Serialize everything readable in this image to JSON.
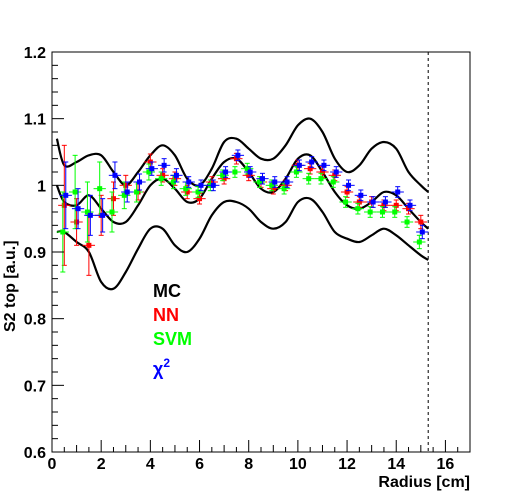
{
  "chart_data": {
    "type": "scatter",
    "title": "",
    "xlabel": "Radius [cm]",
    "ylabel": "S2 top [a.u.]",
    "xlim": [
      0,
      17
    ],
    "ylim": [
      0.6,
      1.2
    ],
    "grid": false,
    "x_ticks": [
      "0",
      "2",
      "4",
      "6",
      "8",
      "10",
      "12",
      "14",
      "16"
    ],
    "y_ticks": [
      "0.6",
      "0.7",
      "0.8",
      "0.9",
      "1",
      "1.1",
      "1.2"
    ],
    "cut_line_x": 15.3,
    "legend_position": "center-left",
    "legend": [
      {
        "key": "mc",
        "label": "MC",
        "color": "#000000"
      },
      {
        "key": "nn",
        "label": "NN",
        "color": "#ff0000"
      },
      {
        "key": "svm",
        "label": "SVM",
        "color": "#00ff00"
      },
      {
        "key": "chi2",
        "label": "χ",
        "sup": "2",
        "color": "#0000ff"
      }
    ],
    "mc_band": {
      "color": "#000000",
      "x": [
        0.2,
        0.5,
        1,
        1.5,
        2,
        2.5,
        3,
        3.5,
        4,
        4.5,
        5,
        5.5,
        6,
        6.5,
        7,
        7.5,
        8,
        8.5,
        9,
        9.5,
        10,
        10.5,
        11,
        11.5,
        12,
        12.5,
        13,
        13.5,
        14,
        14.5,
        15,
        15.3
      ],
      "upper": [
        1.07,
        1.03,
        1.035,
        1.045,
        1.045,
        1.02,
        1.0,
        1.02,
        1.045,
        1.06,
        1.045,
        1.01,
        1.0,
        1.025,
        1.065,
        1.07,
        1.055,
        1.04,
        1.04,
        1.06,
        1.09,
        1.1,
        1.08,
        1.04,
        1.02,
        1.03,
        1.055,
        1.065,
        1.055,
        1.02,
        1.0,
        0.99
      ],
      "central": [
        1.0,
        0.975,
        0.97,
        0.985,
        0.965,
        0.945,
        0.945,
        0.97,
        1.0,
        1.01,
        0.995,
        0.975,
        0.98,
        1.01,
        1.035,
        1.04,
        1.02,
        0.995,
        0.99,
        1.01,
        1.04,
        1.045,
        1.02,
        0.99,
        0.97,
        0.965,
        0.975,
        0.99,
        0.985,
        0.965,
        0.945,
        0.935
      ],
      "lower": [
        0.93,
        0.93,
        0.915,
        0.9,
        0.855,
        0.845,
        0.87,
        0.905,
        0.935,
        0.935,
        0.91,
        0.9,
        0.92,
        0.955,
        0.975,
        0.975,
        0.965,
        0.945,
        0.935,
        0.945,
        0.975,
        0.98,
        0.96,
        0.93,
        0.92,
        0.915,
        0.925,
        0.935,
        0.925,
        0.91,
        0.895,
        0.888
      ]
    },
    "series": [
      {
        "name": "NN",
        "color": "#ff0000",
        "x": [
          0.5,
          1.0,
          1.5,
          2.0,
          2.5,
          3.0,
          3.5,
          4.0,
          4.5,
          5.0,
          5.5,
          6.0,
          6.5,
          7.0,
          7.5,
          8.0,
          8.5,
          9.0,
          9.5,
          10.0,
          10.5,
          11.0,
          11.5,
          12.0,
          12.5,
          13.0,
          13.5,
          14.0,
          14.5,
          15.0
        ],
        "y": [
          0.97,
          0.945,
          0.91,
          0.955,
          0.98,
          1.0,
          0.99,
          1.035,
          1.015,
          1.01,
          0.99,
          0.98,
          1.005,
          1.01,
          1.04,
          1.015,
          1.005,
          0.995,
          1.0,
          1.03,
          1.025,
          1.02,
          1.015,
          0.99,
          0.975,
          0.975,
          0.97,
          0.97,
          0.965,
          0.945
        ],
        "err": [
          0.09,
          0.035,
          0.045,
          0.03,
          0.025,
          0.015,
          0.012,
          0.012,
          0.01,
          0.01,
          0.01,
          0.008,
          0.008,
          0.008,
          0.008,
          0.008,
          0.008,
          0.008,
          0.008,
          0.008,
          0.008,
          0.008,
          0.008,
          0.008,
          0.008,
          0.008,
          0.008,
          0.008,
          0.008,
          0.01
        ]
      },
      {
        "name": "SVM",
        "color": "#00ff00",
        "x": [
          0.5,
          1.0,
          1.5,
          2.0,
          2.5,
          3.0,
          3.5,
          4.0,
          4.5,
          5.0,
          5.5,
          6.0,
          6.5,
          7.0,
          7.5,
          8.0,
          8.5,
          9.0,
          9.5,
          10.0,
          10.5,
          11.0,
          11.5,
          12.0,
          12.5,
          13.0,
          13.5,
          14.0,
          14.5,
          15.0
        ],
        "y": [
          0.93,
          0.99,
          0.96,
          0.995,
          0.96,
          0.985,
          0.99,
          1.02,
          1.01,
          1.005,
          0.995,
          0.99,
          1.0,
          1.015,
          1.02,
          1.025,
          1.005,
          1.0,
          0.995,
          1.02,
          1.01,
          1.01,
          1.005,
          0.975,
          0.965,
          0.96,
          0.96,
          0.96,
          0.945,
          0.915
        ],
        "err": [
          0.06,
          0.055,
          0.045,
          0.04,
          0.03,
          0.02,
          0.015,
          0.012,
          0.01,
          0.01,
          0.01,
          0.008,
          0.008,
          0.008,
          0.008,
          0.008,
          0.008,
          0.008,
          0.008,
          0.008,
          0.008,
          0.008,
          0.008,
          0.008,
          0.008,
          0.008,
          0.008,
          0.008,
          0.008,
          0.01
        ]
      },
      {
        "name": "χ2",
        "color": "#0000ff",
        "x": [
          0.5,
          1.0,
          1.5,
          2.0,
          2.5,
          3.0,
          3.5,
          4.0,
          4.5,
          5.0,
          5.5,
          6.0,
          6.5,
          7.0,
          7.5,
          8.0,
          8.5,
          9.0,
          9.5,
          10.0,
          10.5,
          11.0,
          11.5,
          12.0,
          12.5,
          13.0,
          13.5,
          14.0,
          14.5,
          15.0
        ],
        "y": [
          0.985,
          0.965,
          0.955,
          0.955,
          1.015,
          0.99,
          1.005,
          1.025,
          1.03,
          1.015,
          1.005,
          1.0,
          1.0,
          1.02,
          1.045,
          1.02,
          1.01,
          1.005,
          1.005,
          1.03,
          1.035,
          1.03,
          1.02,
          1.0,
          0.985,
          0.975,
          0.975,
          0.99,
          0.97,
          0.93
        ],
        "err": [
          0.05,
          0.03,
          0.03,
          0.025,
          0.02,
          0.015,
          0.012,
          0.01,
          0.01,
          0.01,
          0.008,
          0.008,
          0.008,
          0.008,
          0.008,
          0.008,
          0.008,
          0.008,
          0.008,
          0.008,
          0.008,
          0.008,
          0.008,
          0.008,
          0.008,
          0.008,
          0.008,
          0.008,
          0.008,
          0.01
        ]
      }
    ]
  }
}
